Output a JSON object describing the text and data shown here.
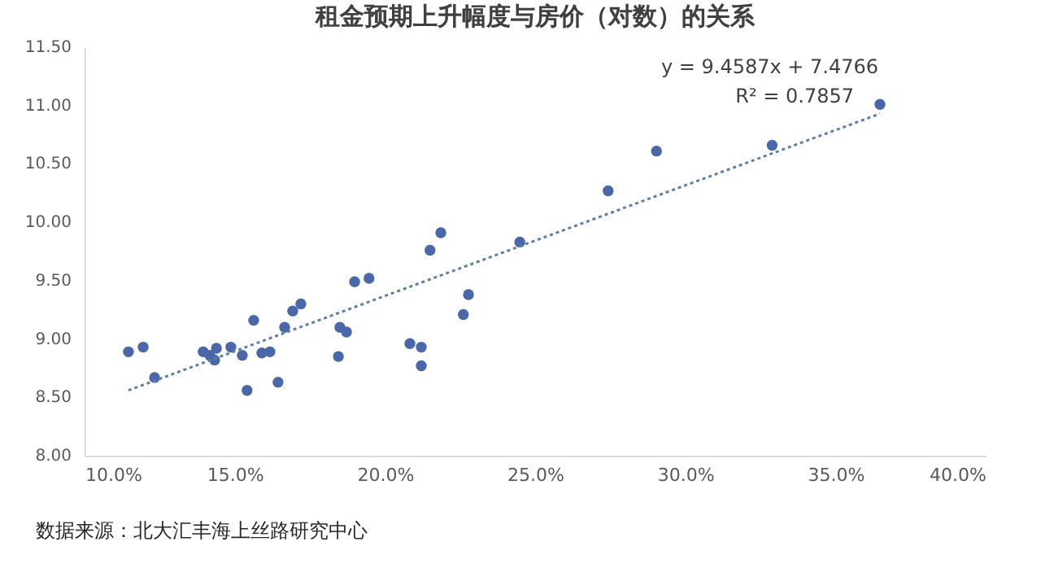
{
  "chart_data": {
    "type": "scatter",
    "title": "租金预期上升幅度与房价（对数）的关系",
    "annotations": [
      "y = 9.4587x + 7.4766",
      "R² = 0.7857",
      "数据来源：北大汇丰海上丝路研究中心"
    ],
    "xlim": [
      10,
      40
    ],
    "xticks": [
      {
        "value": 10,
        "label": "10.0%"
      },
      {
        "value": 15,
        "label": "15.0%"
      },
      {
        "value": 20,
        "label": "20.0%"
      },
      {
        "value": 25,
        "label": "25.0%"
      },
      {
        "value": 30,
        "label": "30.0%"
      },
      {
        "value": 35,
        "label": "35.0%"
      },
      {
        "value": 40,
        "label": "40.0%"
      }
    ],
    "ylim": [
      8,
      11.5
    ],
    "yticks": [
      {
        "value": 8,
        "label": "8.00"
      },
      {
        "value": 8.5,
        "label": "8.50"
      },
      {
        "value": 9,
        "label": "9.00"
      },
      {
        "value": 9.5,
        "label": "9.50"
      },
      {
        "value": 10,
        "label": "10.00"
      },
      {
        "value": 10.5,
        "label": "10.50"
      },
      {
        "value": 11,
        "label": "11.00"
      },
      {
        "value": 11.5,
        "label": "11.50"
      }
    ],
    "grid": false,
    "series": [
      {
        "marker": "circle",
        "color": "#4a67aa",
        "x": [
          11.46,
          11.95,
          12.33,
          13.95,
          14.17,
          14.39,
          14.33,
          14.87,
          15.25,
          15.41,
          15.63,
          15.9,
          16.17,
          16.44,
          16.66,
          16.93,
          17.2,
          18.45,
          18.5,
          18.72,
          18.99,
          19.47,
          20.83,
          21.21,
          21.21,
          21.5,
          21.86,
          22.61,
          22.78,
          24.49,
          27.43,
          29.04,
          32.89,
          36.48
        ],
        "values": [
          8.89,
          8.93,
          8.67,
          8.89,
          8.86,
          8.92,
          8.82,
          8.93,
          8.86,
          8.56,
          9.16,
          8.88,
          8.89,
          8.63,
          9.1,
          9.24,
          9.3,
          8.85,
          9.1,
          9.06,
          9.49,
          9.52,
          8.96,
          8.93,
          8.77,
          9.76,
          9.91,
          9.21,
          9.38,
          9.83,
          10.27,
          10.61,
          10.66,
          11.01
        ]
      },
      {
        "type": "line",
        "color": "#5f7f9f",
        "line_style": "dotted",
        "x": [
          11.46,
          36.48
        ],
        "values": [
          8.56,
          10.93
        ]
      }
    ]
  }
}
